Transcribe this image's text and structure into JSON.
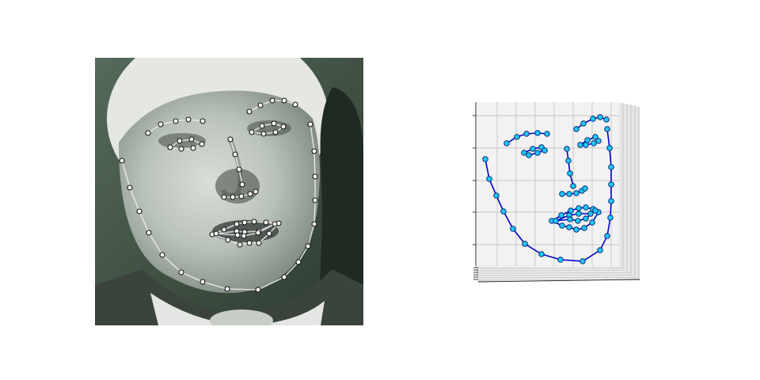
{
  "panels": {
    "photo": {
      "label": "face-photo-with-2d-landmarks",
      "landmark_count": 68
    },
    "plot3d": {
      "label": "3d-landmark-plot",
      "landmark_count": 68
    }
  },
  "colors": {
    "landmark_2d_fill": "#ffffff",
    "landmark_2d_line": "#e8e8e8",
    "landmark_3d_fill": "#1ec8ff",
    "landmark_3d_line": "#0000cc"
  }
}
